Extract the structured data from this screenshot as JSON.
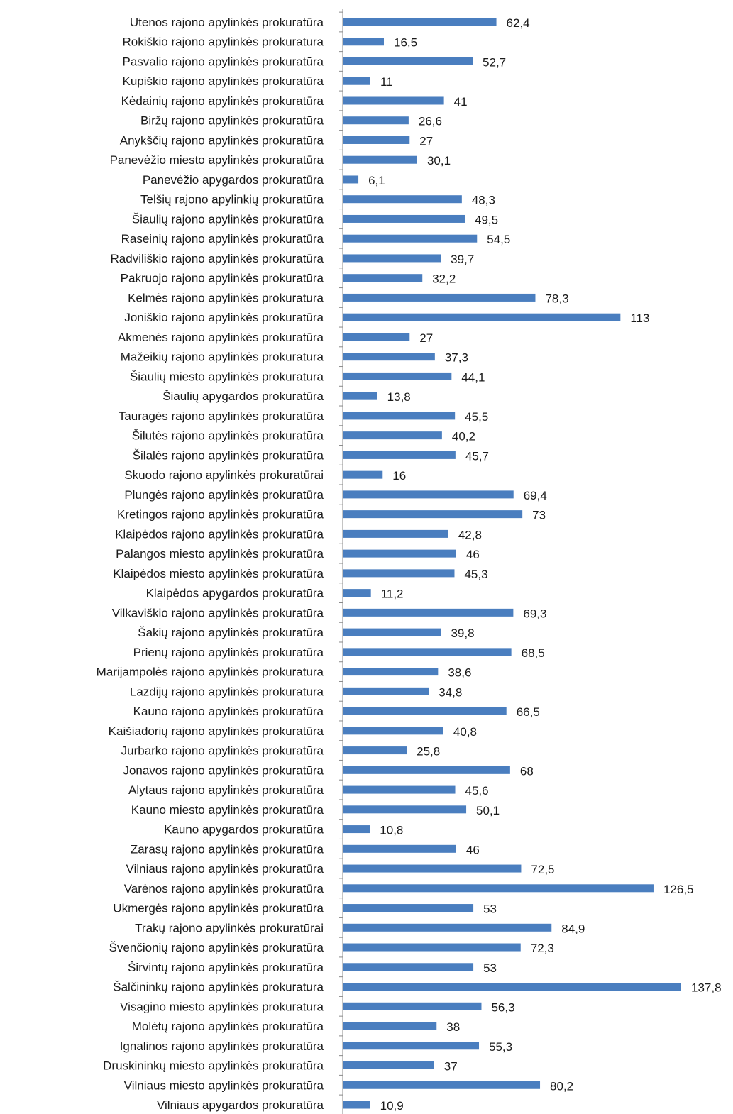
{
  "chart_data": {
    "type": "bar",
    "orientation": "horizontal",
    "title": "",
    "xlabel": "",
    "ylabel": "",
    "xlim": [
      0,
      140
    ],
    "grid": false,
    "legend": "none",
    "colors": {
      "bar": "#4a7ebf",
      "axis": "#8a8a8a",
      "text": "#1a1a1a"
    },
    "categories": [
      "Utenos rajono apylinkės prokuratūra",
      "Rokiškio rajono apylinkės prokuratūra",
      "Pasvalio rajono apylinkės prokuratūra",
      "Kupiškio rajono apylinkės prokuratūra",
      "Kėdainių rajono apylinkės prokuratūra",
      "Biržų rajono apylinkės prokuratūra",
      "Anykščių rajono apylinkės prokuratūra",
      "Panevėžio miesto apylinkės prokuratūra",
      "Panevėžio apygardos prokuratūra",
      "Telšių rajono apylinkių prokuratūra",
      "Šiaulių rajono apylinkės prokuratūra",
      "Raseinių rajono apylinkės prokuratūra",
      "Radviliškio rajono apylinkės prokuratūra",
      "Pakruojo rajono apylinkės prokuratūra",
      "Kelmės rajono apylinkės prokuratūra",
      "Joniškio rajono apylinkės prokuratūra",
      "Akmenės rajono apylinkės prokuratūra",
      "Mažeikių rajono apylinkės prokuratūra",
      "Šiaulių miesto apylinkės prokuratūra",
      "Šiaulių apygardos prokuratūra",
      "Tauragės rajono apylinkės prokuratūra",
      "Šilutės rajono apylinkės prokuratūra",
      "Šilalės rajono apylinkės prokuratūra",
      "Skuodo rajono apylinkės prokuratūrai",
      "Plungės rajono apylinkės prokuratūra",
      "Kretingos rajono apylinkės prokuratūra",
      "Klaipėdos rajono apylinkės prokuratūra",
      "Palangos miesto apylinkės prokuratūra",
      "Klaipėdos miesto apylinkės prokuratūra",
      "Klaipėdos apygardos prokuratūra",
      "Vilkaviškio rajono apylinkės prokuratūra",
      "Šakių rajono apylinkės prokuratūra",
      "Prienų rajono apylinkės prokuratūra",
      "Marijampolės rajono apylinkės prokuratūra",
      "Lazdijų rajono apylinkės prokuratūra",
      "Kauno rajono apylinkės prokuratūra",
      "Kaišiadorių rajono apylinkės prokuratūra",
      "Jurbarko rajono apylinkės prokuratūra",
      "Jonavos rajono apylinkės prokuratūra",
      "Alytaus rajono apylinkės prokuratūra",
      "Kauno miesto apylinkės prokuratūra",
      "Kauno apygardos prokuratūra",
      "Zarasų rajono apylinkės prokuratūra",
      "Vilniaus rajono apylinkės prokuratūra",
      "Varėnos rajono apylinkės prokuratūra",
      "Ukmergės rajono apylinkės prokuratūra",
      "Trakų rajono apylinkės prokuratūrai",
      "Švenčionių rajono apylinkės prokuratūra",
      "Širvintų rajono apylinkės prokuratūra",
      "Šalčininkų rajono apylinkės prokuratūra",
      "Visagino miesto apylinkės prokuratūra",
      "Molėtų rajono apylinkės prokuratūra",
      "Ignalinos rajono apylinkės prokuratūra",
      "Druskininkų miesto apylinkės prokuratūra",
      "Vilniaus miesto apylinkės prokuratūra",
      "Vilniaus apygardos prokuratūra"
    ],
    "values": [
      62.4,
      16.5,
      52.7,
      11,
      41,
      26.6,
      27,
      30.1,
      6.1,
      48.3,
      49.5,
      54.5,
      39.7,
      32.2,
      78.3,
      113,
      27,
      37.3,
      44.1,
      13.8,
      45.5,
      40.2,
      45.7,
      16,
      69.4,
      73,
      42.8,
      46,
      45.3,
      11.2,
      69.3,
      39.8,
      68.5,
      38.6,
      34.8,
      66.5,
      40.8,
      25.8,
      68,
      45.6,
      50.1,
      10.8,
      46,
      72.5,
      126.5,
      53,
      84.9,
      72.3,
      53,
      137.8,
      56.3,
      38,
      55.3,
      37,
      80.2,
      10.9
    ],
    "value_labels": [
      "62,4",
      "16,5",
      "52,7",
      "11",
      "41",
      "26,6",
      "27",
      "30,1",
      "6,1",
      "48,3",
      "49,5",
      "54,5",
      "39,7",
      "32,2",
      "78,3",
      "113",
      "27",
      "37,3",
      "44,1",
      "13,8",
      "45,5",
      "40,2",
      "45,7",
      "16",
      "69,4",
      "73",
      "42,8",
      "46",
      "45,3",
      "11,2",
      "69,3",
      "39,8",
      "68,5",
      "38,6",
      "34,8",
      "66,5",
      "40,8",
      "25,8",
      "68",
      "45,6",
      "50,1",
      "10,8",
      "46",
      "72,5",
      "126,5",
      "53",
      "84,9",
      "72,3",
      "53",
      "137,8",
      "56,3",
      "38",
      "55,3",
      "37",
      "80,2",
      "10,9"
    ]
  }
}
